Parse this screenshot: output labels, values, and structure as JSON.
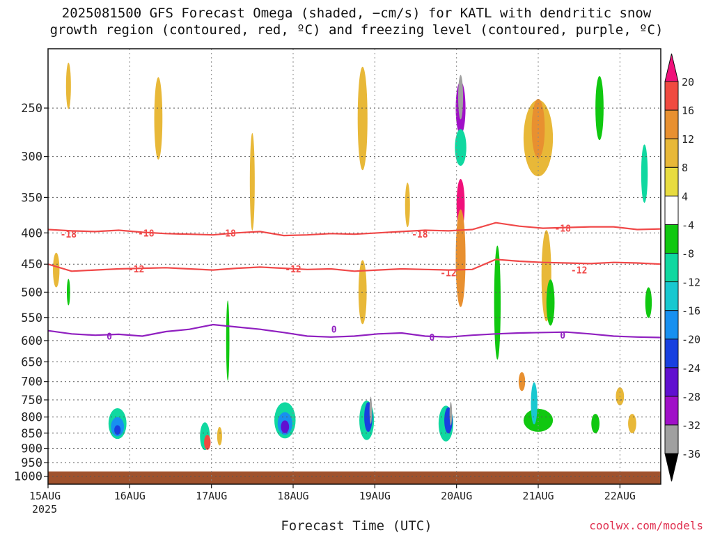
{
  "chart_data": {
    "type": "heatmap",
    "title": "2025081500 GFS Forecast Omega (shaded, −cm/s) for KATL with dendritic snow",
    "subtitle": "growth region (contoured, red, ºC) and freezing level (contoured, purple, ºC)",
    "xlabel": "Forecast Time (UTC)",
    "ylabel": "",
    "y_ticks": [
      250,
      300,
      350,
      400,
      450,
      500,
      550,
      600,
      650,
      700,
      750,
      800,
      850,
      900,
      950,
      1000
    ],
    "y_range": [
      200,
      1030
    ],
    "y_scale": "log-pressure",
    "x_ticks": [
      "15AUG",
      "16AUG",
      "17AUG",
      "18AUG",
      "19AUG",
      "20AUG",
      "21AUG",
      "22AUG"
    ],
    "x_year": "2025",
    "x_range_days": [
      0,
      7.5
    ],
    "colorbar": {
      "levels": [
        -36,
        -32,
        -28,
        -24,
        -20,
        -16,
        -12,
        -8,
        -4,
        4,
        8,
        12,
        16,
        20
      ],
      "colors": [
        "#000000",
        "#a0a0a0",
        "#a010c8",
        "#6010d0",
        "#1840e0",
        "#1890f0",
        "#18c8d0",
        "#10d8a0",
        "#10c810",
        "#ffffff",
        "#e8dc40",
        "#e8b838",
        "#e89030",
        "#f04a40",
        "#f0107a"
      ]
    },
    "contours": [
      {
        "label": "-18",
        "color": "#f04848",
        "pressure": [
          395,
          397,
          398,
          396,
          399,
          401,
          402,
          403,
          400,
          398,
          404,
          403,
          401,
          402,
          400,
          398,
          396,
          397,
          395,
          385,
          390,
          393,
          392,
          391,
          391,
          395,
          394
        ]
      },
      {
        "label": "-12",
        "color": "#f04848",
        "pressure": [
          450,
          462,
          460,
          458,
          457,
          456,
          458,
          460,
          457,
          455,
          457,
          459,
          458,
          462,
          460,
          458,
          459,
          460,
          459,
          442,
          445,
          447,
          448,
          449,
          447,
          448,
          450
        ]
      },
      {
        "label": "0",
        "color": "#9020c0",
        "pressure": [
          578,
          585,
          588,
          586,
          590,
          580,
          575,
          565,
          570,
          575,
          582,
          590,
          592,
          590,
          585,
          583,
          590,
          592,
          588,
          585,
          583,
          582,
          581,
          585,
          590,
          592,
          593
        ]
      }
    ],
    "contour_labels": [
      {
        "text": "-18",
        "day": 0.25,
        "p": 402
      },
      {
        "text": "-18",
        "day": 1.2,
        "p": 400
      },
      {
        "text": "-18",
        "day": 2.2,
        "p": 400
      },
      {
        "text": "-18",
        "day": 4.55,
        "p": 402
      },
      {
        "text": "-18",
        "day": 6.3,
        "p": 393
      },
      {
        "text": "-12",
        "day": 1.08,
        "p": 458
      },
      {
        "text": "-12",
        "day": 3.0,
        "p": 458
      },
      {
        "text": "-12",
        "day": 4.9,
        "p": 465
      },
      {
        "text": "-12",
        "day": 6.5,
        "p": 460
      },
      {
        "text": "0",
        "day": 0.75,
        "p": 590
      },
      {
        "text": "0",
        "day": 3.5,
        "p": 575
      },
      {
        "text": "0",
        "day": 4.7,
        "p": 592
      },
      {
        "text": "0",
        "day": 6.3,
        "p": 588
      }
    ],
    "blobs": [
      {
        "day": 0.85,
        "p": 820,
        "w": 0.11,
        "h": 95,
        "v": -12
      },
      {
        "day": 0.85,
        "p": 830,
        "w": 0.08,
        "h": 60,
        "v": -20
      },
      {
        "day": 0.85,
        "p": 840,
        "w": 0.04,
        "h": 30,
        "v": -24
      },
      {
        "day": 1.92,
        "p": 860,
        "w": 0.06,
        "h": 90,
        "v": -12
      },
      {
        "day": 1.95,
        "p": 880,
        "w": 0.04,
        "h": 50,
        "v": 16
      },
      {
        "day": 2.1,
        "p": 860,
        "w": 0.03,
        "h": 60,
        "v": 8
      },
      {
        "day": 2.2,
        "p": 600,
        "w": 0.02,
        "h": 180,
        "v": -8
      },
      {
        "day": 2.9,
        "p": 810,
        "w": 0.13,
        "h": 110,
        "v": -12
      },
      {
        "day": 2.9,
        "p": 820,
        "w": 0.09,
        "h": 70,
        "v": -20
      },
      {
        "day": 2.9,
        "p": 830,
        "w": 0.05,
        "h": 40,
        "v": -28
      },
      {
        "day": 3.9,
        "p": 810,
        "w": 0.09,
        "h": 120,
        "v": -12
      },
      {
        "day": 3.92,
        "p": 800,
        "w": 0.05,
        "h": 90,
        "v": -24
      },
      {
        "day": 3.95,
        "p": 780,
        "w": 0.015,
        "h": 80,
        "v": -36
      },
      {
        "day": 3.85,
        "p": 500,
        "w": 0.05,
        "h": 120,
        "v": 8
      },
      {
        "day": 4.87,
        "p": 820,
        "w": 0.09,
        "h": 110,
        "v": -12
      },
      {
        "day": 4.9,
        "p": 810,
        "w": 0.05,
        "h": 80,
        "v": -24
      },
      {
        "day": 4.93,
        "p": 790,
        "w": 0.015,
        "h": 70,
        "v": -36
      },
      {
        "day": 5.05,
        "p": 360,
        "w": 0.05,
        "h": 70,
        "v": 20
      },
      {
        "day": 5.05,
        "p": 440,
        "w": 0.06,
        "h": 160,
        "v": 12
      },
      {
        "day": 5.05,
        "p": 250,
        "w": 0.06,
        "h": 50,
        "v": -32
      },
      {
        "day": 5.05,
        "p": 240,
        "w": 0.03,
        "h": 40,
        "v": -36
      },
      {
        "day": 5.05,
        "p": 290,
        "w": 0.07,
        "h": 40,
        "v": -12
      },
      {
        "day": 5.5,
        "p": 520,
        "w": 0.04,
        "h": 220,
        "v": -8
      },
      {
        "day": 6.0,
        "p": 810,
        "w": 0.18,
        "h": 70,
        "v": -8
      },
      {
        "day": 5.95,
        "p": 760,
        "w": 0.04,
        "h": 120,
        "v": -16
      },
      {
        "day": 5.8,
        "p": 700,
        "w": 0.04,
        "h": 50,
        "v": 12
      },
      {
        "day": 6.0,
        "p": 280,
        "w": 0.18,
        "h": 80,
        "v": 8
      },
      {
        "day": 6.0,
        "p": 270,
        "w": 0.08,
        "h": 60,
        "v": 12
      },
      {
        "day": 6.1,
        "p": 470,
        "w": 0.06,
        "h": 160,
        "v": 8
      },
      {
        "day": 6.15,
        "p": 520,
        "w": 0.05,
        "h": 90,
        "v": -8
      },
      {
        "day": 6.75,
        "p": 250,
        "w": 0.05,
        "h": 60,
        "v": -8
      },
      {
        "day": 7.3,
        "p": 320,
        "w": 0.04,
        "h": 70,
        "v": -12
      },
      {
        "day": 6.7,
        "p": 820,
        "w": 0.05,
        "h": 60,
        "v": -8
      },
      {
        "day": 7.0,
        "p": 740,
        "w": 0.05,
        "h": 50,
        "v": 8
      },
      {
        "day": 7.35,
        "p": 520,
        "w": 0.04,
        "h": 60,
        "v": -8
      },
      {
        "day": 7.15,
        "p": 820,
        "w": 0.05,
        "h": 60,
        "v": 8
      },
      {
        "day": 0.1,
        "p": 460,
        "w": 0.04,
        "h": 60,
        "v": 8
      },
      {
        "day": 0.25,
        "p": 500,
        "w": 0.02,
        "h": 50,
        "v": -8
      },
      {
        "day": 0.25,
        "p": 230,
        "w": 0.03,
        "h": 40,
        "v": 8
      },
      {
        "day": 1.35,
        "p": 260,
        "w": 0.05,
        "h": 80,
        "v": 8
      },
      {
        "day": 2.5,
        "p": 330,
        "w": 0.03,
        "h": 120,
        "v": 8
      },
      {
        "day": 3.85,
        "p": 260,
        "w": 0.06,
        "h": 100,
        "v": 8
      },
      {
        "day": 4.4,
        "p": 360,
        "w": 0.03,
        "h": 60,
        "v": 8
      }
    ],
    "ground_pressure": 1000
  },
  "credit": "coolwx.com/models"
}
